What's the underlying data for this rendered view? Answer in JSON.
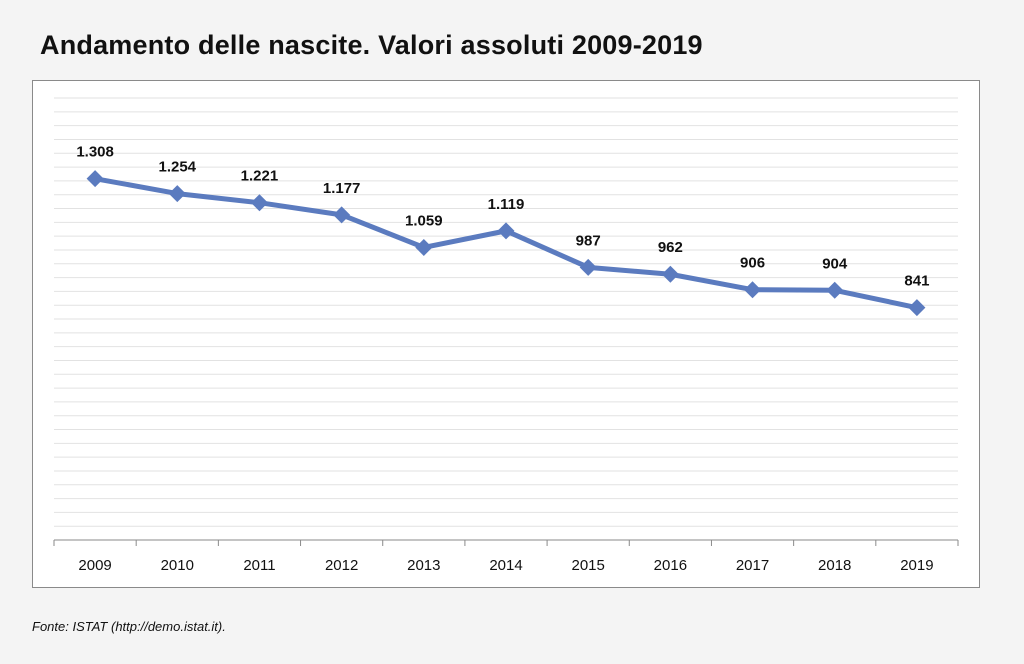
{
  "title": "Andamento delle nascite. Valori assoluti 2009-2019",
  "source": "Fonte: ISTAT (http://demo.istat.it).",
  "chart_data": {
    "type": "line",
    "categories": [
      "2009",
      "2010",
      "2011",
      "2012",
      "2013",
      "2014",
      "2015",
      "2016",
      "2017",
      "2018",
      "2019"
    ],
    "series": [
      {
        "values": [
          1308,
          1254,
          1221,
          1177,
          1059,
          1119,
          987,
          962,
          906,
          904,
          841
        ],
        "labels": [
          "1.308",
          "1.254",
          "1.221",
          "1.177",
          "1.059",
          "1.119",
          "987",
          "962",
          "906",
          "904",
          "841"
        ],
        "color": "#5b7bbf",
        "marker": "diamond"
      }
    ],
    "title": "Andamento delle nascite. Valori assoluti 2009-2019",
    "xlabel": "",
    "ylabel": "",
    "ylim": [
      0,
      1600
    ],
    "grid": true,
    "y_tick_labels_shown": false,
    "legend": "none"
  }
}
